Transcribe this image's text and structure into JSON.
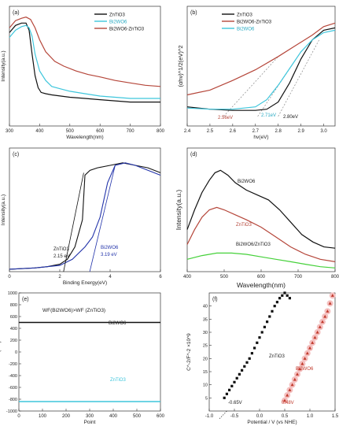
{
  "colors": {
    "black": "#111111",
    "red": "#b5463a",
    "cyan": "#3ec6dc",
    "green": "#45d13a",
    "blue": "#2233aa",
    "navy": "#1e1e8a",
    "red_tri": "#c0392b",
    "halo": "#f4c0c0"
  },
  "chart_data": [
    {
      "panel": "(a)",
      "type": "line",
      "xlabel": "Wavelength(nm)",
      "ylabel": "Intensity(a.u.)",
      "xlim": [
        300,
        800
      ],
      "ylim": [
        0,
        1
      ],
      "xticks": [
        "300",
        "400",
        "500",
        "600",
        "700",
        "800"
      ],
      "legend": "top-right",
      "series": [
        {
          "name": "ZnTiO3",
          "color": "#111111",
          "x": [
            300,
            320,
            340,
            355,
            365,
            375,
            385,
            395,
            405,
            420,
            440,
            470,
            500,
            550,
            600,
            650,
            700,
            750,
            800
          ],
          "y": [
            0.78,
            0.84,
            0.86,
            0.86,
            0.8,
            0.6,
            0.42,
            0.32,
            0.28,
            0.27,
            0.26,
            0.25,
            0.24,
            0.23,
            0.22,
            0.21,
            0.2,
            0.2,
            0.2
          ]
        },
        {
          "name": "Bi2WO6",
          "color": "#3ec6dc",
          "x": [
            300,
            320,
            340,
            355,
            365,
            375,
            385,
            400,
            420,
            440,
            470,
            500,
            550,
            600,
            650,
            700,
            750,
            800
          ],
          "y": [
            0.74,
            0.8,
            0.83,
            0.84,
            0.82,
            0.75,
            0.6,
            0.46,
            0.38,
            0.33,
            0.31,
            0.29,
            0.27,
            0.25,
            0.24,
            0.23,
            0.23,
            0.23
          ]
        },
        {
          "name": "Bi2WO6-ZnTiO3",
          "color": "#b5463a",
          "x": [
            300,
            320,
            340,
            355,
            370,
            385,
            400,
            420,
            450,
            480,
            520,
            560,
            600,
            650,
            700,
            750,
            800
          ],
          "y": [
            0.82,
            0.88,
            0.9,
            0.91,
            0.89,
            0.82,
            0.72,
            0.62,
            0.54,
            0.5,
            0.46,
            0.43,
            0.41,
            0.38,
            0.36,
            0.34,
            0.33
          ]
        }
      ]
    },
    {
      "panel": "(b)",
      "type": "line",
      "xlabel": "hv(eV)",
      "ylabel": "(αhν)^1/2(eV)^2",
      "xlim": [
        2.4,
        3.05
      ],
      "ylim": [
        0,
        1
      ],
      "xticks": [
        "2.4",
        "2.5",
        "2.6",
        "2.7",
        "2.8",
        "2.9",
        "3.0"
      ],
      "legend": "top-left",
      "annotations": [
        "2.56eV",
        "2.71eV",
        "2.80eV"
      ],
      "series": [
        {
          "name": "ZnTiO3",
          "color": "#111111",
          "x": [
            2.4,
            2.5,
            2.6,
            2.7,
            2.75,
            2.8,
            2.85,
            2.9,
            2.95,
            3.0,
            3.05
          ],
          "y": [
            0.16,
            0.14,
            0.13,
            0.13,
            0.14,
            0.2,
            0.36,
            0.56,
            0.72,
            0.8,
            0.82
          ]
        },
        {
          "name": "Bi2WO6-ZnTiO3",
          "color": "#b5463a",
          "x": [
            2.4,
            2.5,
            2.6,
            2.7,
            2.8,
            2.9,
            2.95,
            3.0,
            3.05
          ],
          "y": [
            0.26,
            0.3,
            0.38,
            0.47,
            0.58,
            0.7,
            0.76,
            0.83,
            0.86
          ]
        },
        {
          "name": "Bi2WO6",
          "color": "#3ec6dc",
          "x": [
            2.4,
            2.5,
            2.6,
            2.7,
            2.75,
            2.8,
            2.85,
            2.9,
            2.95,
            3.0,
            3.05
          ],
          "y": [
            0.15,
            0.14,
            0.14,
            0.16,
            0.22,
            0.34,
            0.48,
            0.62,
            0.72,
            0.78,
            0.8
          ]
        }
      ]
    },
    {
      "panel": "(c)",
      "type": "line",
      "xlabel": "Binding Energy(eV)",
      "ylabel": "Intensity(a.u.)",
      "xlim": [
        0,
        6
      ],
      "ylim": [
        0,
        1
      ],
      "xticks": [
        "0",
        "2",
        "4",
        "6"
      ],
      "annotations": [
        {
          "label": "ZnTiO3",
          "value": "2.15 eV"
        },
        {
          "label": "Bi2WO6",
          "value": "3.19 eV"
        }
      ],
      "series": [
        {
          "name": "ZnTiO3",
          "color": "#111111",
          "x": [
            0,
            1,
            1.5,
            2,
            2.3,
            2.6,
            2.9,
            3.0,
            3.2,
            3.5,
            4,
            4.5,
            5,
            5.5,
            6
          ],
          "y": [
            0.02,
            0.03,
            0.04,
            0.06,
            0.1,
            0.2,
            0.42,
            0.78,
            0.82,
            0.84,
            0.86,
            0.88,
            0.86,
            0.84,
            0.8
          ]
        },
        {
          "name": "Bi2WO6",
          "color": "#2233aa",
          "x": [
            0,
            1,
            2,
            2.5,
            3,
            3.3,
            3.6,
            3.9,
            4.2,
            4.6,
            5,
            5.5,
            6
          ],
          "y": [
            0.02,
            0.03,
            0.05,
            0.1,
            0.2,
            0.28,
            0.44,
            0.72,
            0.86,
            0.88,
            0.86,
            0.82,
            0.78
          ]
        }
      ]
    },
    {
      "panel": "(d)",
      "type": "line",
      "xlabel": "Wavelength(nm)",
      "ylabel": "Intensity(a.u.)",
      "xlim": [
        400,
        800
      ],
      "ylim": [
        0,
        1
      ],
      "xticks": [
        "400",
        "500",
        "600",
        "700",
        "800"
      ],
      "series": [
        {
          "name": "Bi2WO6",
          "color": "#111111",
          "x": [
            400,
            420,
            440,
            460,
            475,
            490,
            510,
            530,
            560,
            590,
            620,
            650,
            680,
            710,
            740,
            770,
            800
          ],
          "y": [
            0.34,
            0.5,
            0.64,
            0.74,
            0.8,
            0.82,
            0.78,
            0.72,
            0.66,
            0.62,
            0.58,
            0.5,
            0.4,
            0.3,
            0.24,
            0.2,
            0.19
          ]
        },
        {
          "name": "ZnTiO3",
          "color": "#b5463a",
          "x": [
            400,
            420,
            440,
            460,
            480,
            500,
            530,
            560,
            600,
            640,
            680,
            720,
            760,
            800
          ],
          "y": [
            0.22,
            0.34,
            0.44,
            0.5,
            0.52,
            0.5,
            0.46,
            0.42,
            0.36,
            0.28,
            0.2,
            0.14,
            0.1,
            0.08
          ]
        },
        {
          "name": "Bi2WO6/ZnTiO3",
          "color": "#45d13a",
          "x": [
            400,
            440,
            480,
            520,
            560,
            600,
            640,
            680,
            720,
            760,
            800
          ],
          "y": [
            0.1,
            0.13,
            0.15,
            0.15,
            0.14,
            0.12,
            0.1,
            0.08,
            0.06,
            0.04,
            0.03
          ]
        }
      ]
    },
    {
      "panel": "(e)",
      "type": "line",
      "xlabel": "Point",
      "ylabel": "CPD(mV)",
      "xlim": [
        0,
        600
      ],
      "ylim": [
        -1000,
        1000
      ],
      "xticks": [
        "0",
        "100",
        "200",
        "300",
        "400",
        "500",
        "600"
      ],
      "yticks": [
        "-1000",
        "-800",
        "-600",
        "-400",
        "-200",
        "0",
        "200",
        "400",
        "600",
        "800",
        "1000"
      ],
      "annotation": "WF(Bi2WO6)>WF (ZnTiO3)",
      "series": [
        {
          "name": "Bi2WO6",
          "color": "#111111",
          "x": [
            0,
            600
          ],
          "y": [
            500,
            500
          ]
        },
        {
          "name": "ZnTiO3",
          "color": "#3ec6dc",
          "x": [
            0,
            600
          ],
          "y": [
            -840,
            -840
          ]
        }
      ]
    },
    {
      "panel": "(f)",
      "type": "scatter",
      "xlabel": "Potential / V (vs NHE)",
      "ylabel": "C^-2/F^-2 ×10^9",
      "xlim": [
        -1.0,
        1.5
      ],
      "ylim": [
        0,
        45
      ],
      "xticks": [
        "-1.0",
        "-0.5",
        "0.0",
        "0.5",
        "1.0",
        "1.5"
      ],
      "yticks": [
        "5",
        "10",
        "15",
        "20",
        "25",
        "30",
        "35",
        "40"
      ],
      "annotations": [
        "-0.65V",
        "0.48V"
      ],
      "series": [
        {
          "name": "ZnTiO3",
          "color": "#111111",
          "x": [
            -0.7,
            -0.65,
            -0.6,
            -0.55,
            -0.5,
            -0.45,
            -0.4,
            -0.35,
            -0.3,
            -0.25,
            -0.2,
            -0.15,
            -0.1,
            -0.05,
            0.0,
            0.05,
            0.1,
            0.15,
            0.2,
            0.25,
            0.3,
            0.35,
            0.4,
            0.45,
            0.5,
            0.55,
            0.6
          ],
          "y": [
            5,
            6.5,
            8,
            9.5,
            11,
            12.5,
            14,
            15.5,
            17,
            18.5,
            20,
            22,
            24,
            26,
            28,
            30,
            32,
            34,
            36,
            38,
            40,
            41.5,
            43,
            44,
            45,
            44,
            43
          ]
        },
        {
          "name": "Bi2WO6",
          "color": "#c0392b",
          "x": [
            0.5,
            0.55,
            0.6,
            0.65,
            0.7,
            0.75,
            0.8,
            0.85,
            0.9,
            0.95,
            1.0,
            1.05,
            1.1,
            1.15,
            1.2,
            1.25,
            1.3,
            1.35,
            1.4,
            1.45
          ],
          "y": [
            4,
            6,
            8,
            10,
            12,
            14,
            16,
            18,
            20,
            22,
            24,
            26,
            28,
            30,
            32,
            34,
            36,
            38,
            41,
            44
          ]
        }
      ]
    }
  ]
}
